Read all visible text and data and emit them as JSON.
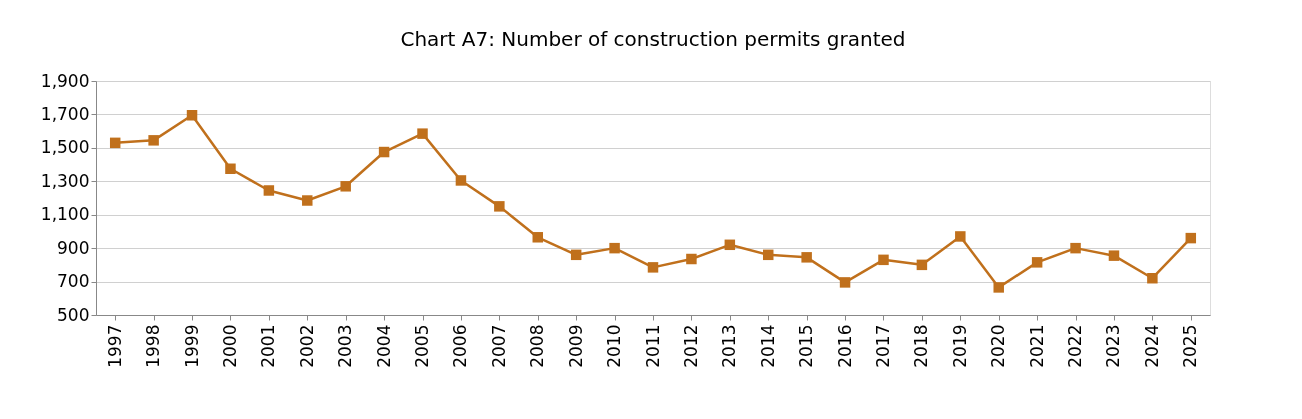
{
  "chart_data": {
    "type": "line",
    "title": "Chart A7: Number of construction permits granted",
    "categories": [
      "1997",
      "1998",
      "1999",
      "2000",
      "2001",
      "2002",
      "2003",
      "2004",
      "2005",
      "2006",
      "2007",
      "2008",
      "2009",
      "2010",
      "2011",
      "2012",
      "2013",
      "2014",
      "2015",
      "2016",
      "2017",
      "2018",
      "2019",
      "2020",
      "2021",
      "2022",
      "2023",
      "2024",
      "2025"
    ],
    "series": [
      {
        "color": "#c0701c",
        "values": [
          1530,
          1545,
          1695,
          1375,
          1245,
          1185,
          1270,
          1475,
          1585,
          1305,
          1150,
          965,
          860,
          900,
          785,
          835,
          920,
          860,
          845,
          695,
          830,
          800,
          970,
          665,
          815,
          900,
          855,
          720,
          960
        ]
      }
    ],
    "ylim": [
      500,
      1900
    ],
    "yticks": [
      {
        "value": 500,
        "label": "500"
      },
      {
        "value": 700,
        "label": "700"
      },
      {
        "value": 900,
        "label": "900"
      },
      {
        "value": 1100,
        "label": "1,100"
      },
      {
        "value": 1300,
        "label": "1,300"
      },
      {
        "value": 1500,
        "label": "1,500"
      },
      {
        "value": 1700,
        "label": "1,700"
      },
      {
        "value": 1900,
        "label": "1,900"
      }
    ],
    "grid": "y",
    "marker": "square",
    "line_style": "solid"
  }
}
